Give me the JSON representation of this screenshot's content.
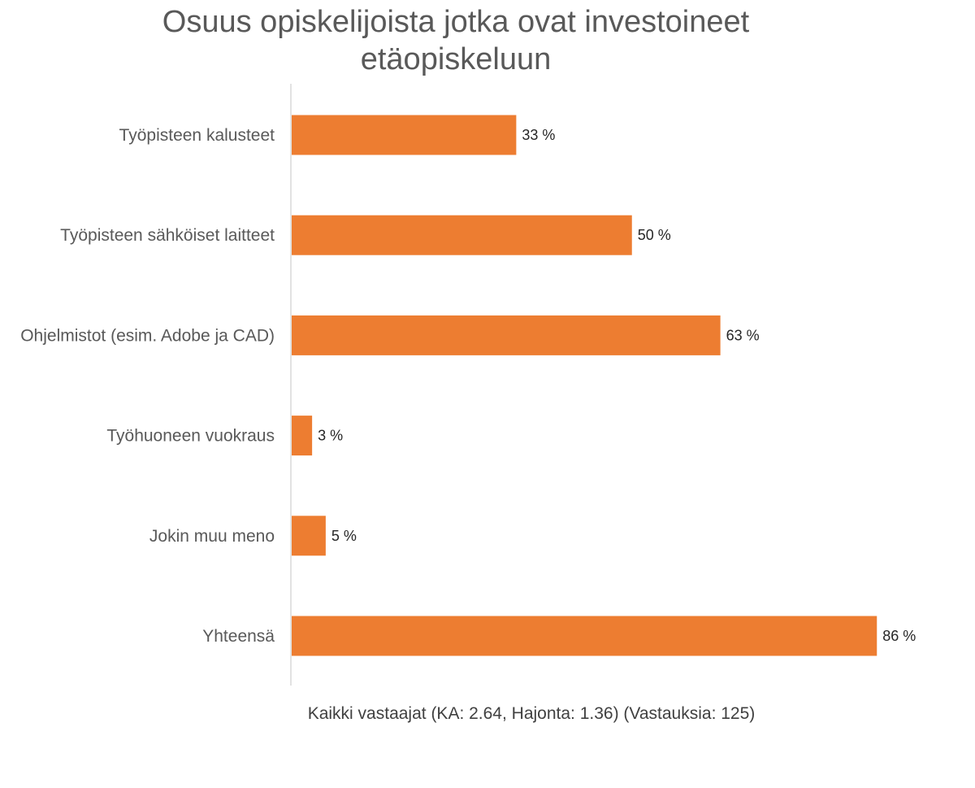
{
  "chart_data": {
    "type": "bar",
    "orientation": "horizontal",
    "title_lines": [
      "Osuus opiskelijoista jotka ovat investoineet",
      "etäopiskeluun"
    ],
    "categories": [
      "Työpisteen kalusteet",
      "Työpisteen sähköiset laitteet",
      "Ohjelmistot (esim. Adobe ja CAD)",
      "Työhuoneen vuokraus",
      "Jokin muu meno",
      "Yhteensä"
    ],
    "values": [
      33,
      50,
      63,
      3,
      5,
      86
    ],
    "data_labels": [
      "33 %",
      "50 %",
      "63 %",
      "3 %",
      "5 %",
      "86 %"
    ],
    "value_unit": "%",
    "xlim": [
      0,
      100
    ],
    "grid": false,
    "legend": "none",
    "bar_color": "#ED7D31",
    "axis_color": "#D9D9D9",
    "footnote": "Kaikki vastaajat (KA: 2.64, Hajonta: 1.36) (Vastauksia: 125)"
  }
}
